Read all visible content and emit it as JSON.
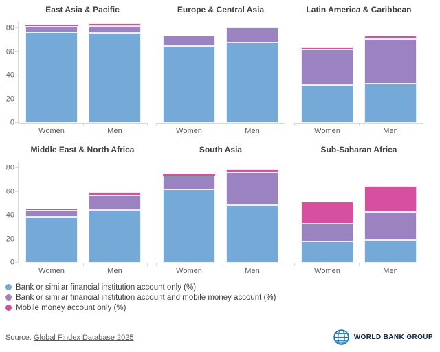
{
  "chart_data": {
    "type": "bar",
    "stacked": true,
    "grid": false,
    "legend_position": "bottom-left",
    "categories": [
      "Women",
      "Men"
    ],
    "y_ticks": [
      0,
      20,
      40,
      60,
      80
    ],
    "ylim": [
      0,
      86
    ],
    "ylabel": "",
    "xlabel": "",
    "series": [
      {
        "name": "Bank or similar financial institution account only (%)",
        "key": "bank-only",
        "color": "#74a9d8"
      },
      {
        "name": "Bank or similar financial institution account and mobile money account (%)",
        "key": "bank-and-mobile",
        "color": "#9b82c0"
      },
      {
        "name": "Mobile money account only (%)",
        "key": "mobile-only",
        "color": "#d6509f"
      }
    ],
    "subplots": [
      {
        "title": "East Asia & Pacific",
        "values": {
          "Women": [
            77,
            5,
            1
          ],
          "Men": [
            76,
            6,
            2
          ]
        }
      },
      {
        "title": "Europe & Central Asia",
        "values": {
          "Women": [
            65,
            9,
            0
          ],
          "Men": [
            68,
            13,
            0
          ]
        }
      },
      {
        "title": "Latin America & Caribbean",
        "values": {
          "Women": [
            32,
            30,
            2
          ],
          "Men": [
            33,
            38,
            3
          ]
        }
      },
      {
        "title": "Middle East & North Africa",
        "values": {
          "Women": [
            39,
            5,
            2
          ],
          "Men": [
            45,
            12,
            3
          ]
        }
      },
      {
        "title": "South Asia",
        "values": {
          "Women": [
            62,
            12,
            1
          ],
          "Men": [
            49,
            28,
            2
          ]
        }
      },
      {
        "title": "Sub-Saharan Africa",
        "values": {
          "Women": [
            18,
            15,
            19
          ],
          "Men": [
            19,
            24,
            22
          ]
        }
      }
    ]
  },
  "footer": {
    "source_prefix": "Source: ",
    "source_link": "Global Findex Database 2025",
    "logo_text": "WORLD BANK GROUP",
    "logo_color": "#07294d",
    "globe_color": "#1976b8"
  }
}
